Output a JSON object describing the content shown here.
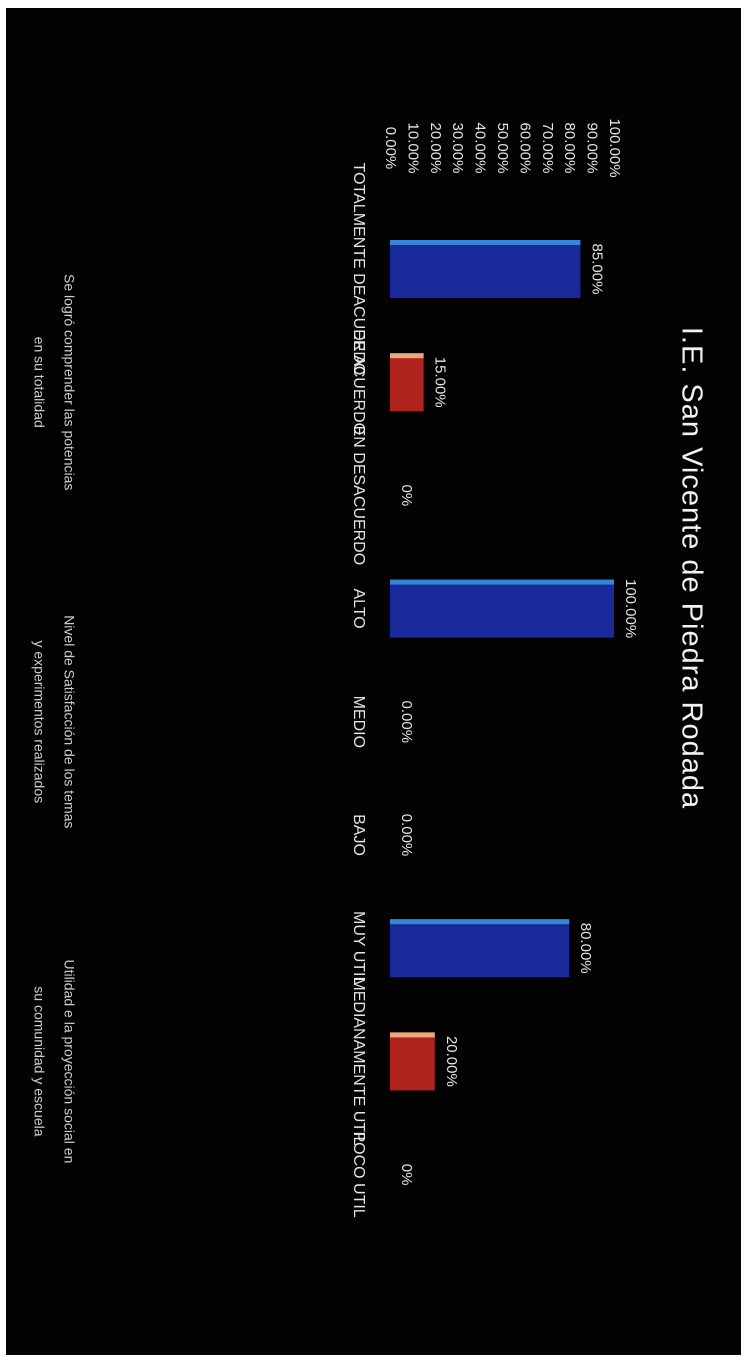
{
  "chart_data": {
    "type": "bar",
    "title": "I.E. San Vicente de Piedra Rodada",
    "categories": [
      "TOTALMENTE DEACUERDO",
      "DE ACUERDO",
      "EN DESACUERDO",
      "ALTO",
      "MEDIO",
      "BAJO",
      "MUY UTIL",
      "MEDIANAMENTE UTIL",
      "POCO UTIL"
    ],
    "values": [
      85,
      15,
      0,
      100,
      0,
      0,
      80,
      20,
      0
    ],
    "value_labels": [
      "85.00%",
      "15.00%",
      "0%",
      "100.00%",
      "0.00%",
      "0.00%",
      "80.00%",
      "20.00%",
      "0%"
    ],
    "bar_colors": [
      "#1a2a9c",
      "#b0231d",
      "#1a2a9c",
      "#1a2a9c",
      "#1a2a9c",
      "#1a2a9c",
      "#1a2a9c",
      "#b0231d",
      "#1a2a9c"
    ],
    "ylim": [
      0,
      100
    ],
    "yticks": [
      "0.00%",
      "10.00%",
      "20.00%",
      "30.00%",
      "40.00%",
      "50.00%",
      "60.00%",
      "70.00%",
      "80.00%",
      "90.00%",
      "100.00%"
    ],
    "group_labels": [
      {
        "lines": [
          "Se logró comprender las potencias",
          "en su totalidad"
        ]
      },
      {
        "lines": [
          "Nivel de Satisfacción de los temas",
          "y experimentos realizados"
        ]
      },
      {
        "lines": [
          "Utilidad e la proyección social en",
          "su comunidad y escuela"
        ]
      }
    ],
    "grid": false,
    "orientation": "rotated-90"
  }
}
